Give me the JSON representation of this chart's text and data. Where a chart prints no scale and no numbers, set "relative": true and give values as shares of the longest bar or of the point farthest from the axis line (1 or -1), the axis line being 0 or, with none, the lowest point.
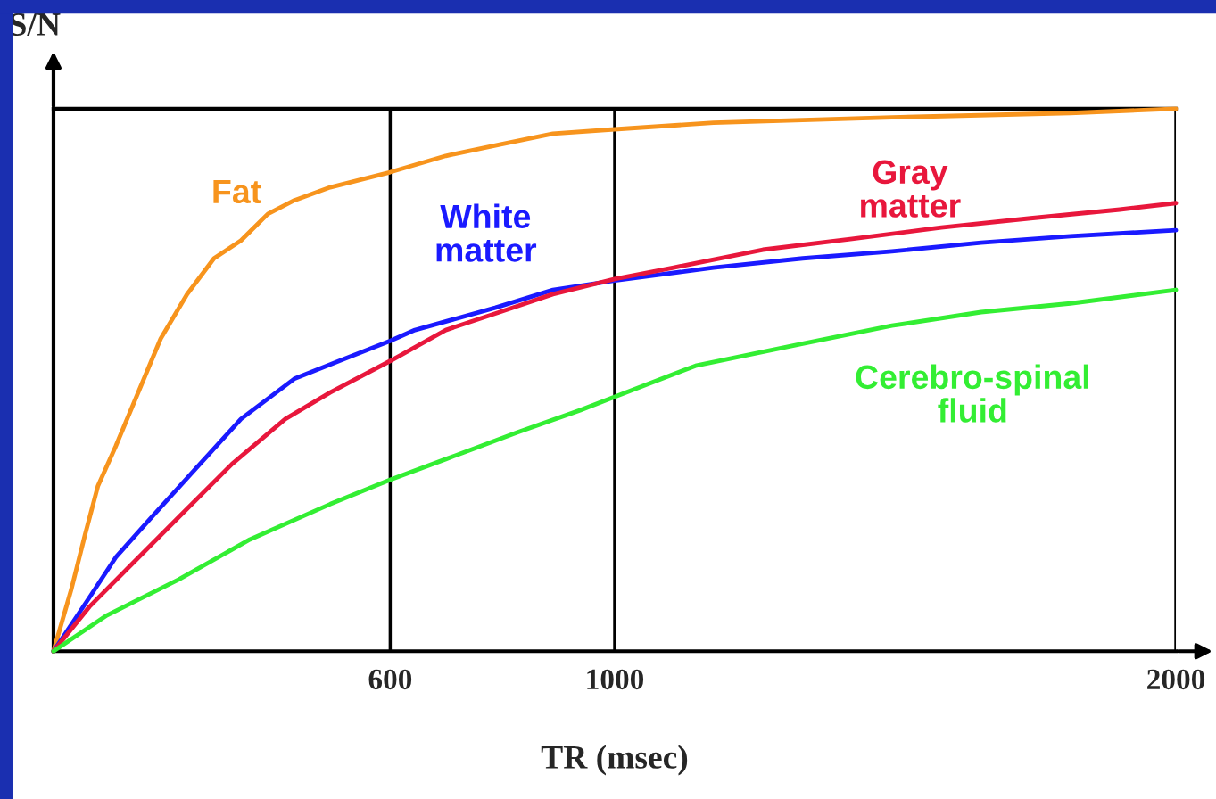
{
  "chart_data": {
    "type": "line",
    "relative": true,
    "xlabel": "TR (msec)",
    "ylabel": "S/N",
    "xlim": [
      0,
      2000
    ],
    "xticks": [
      600,
      1000,
      2000
    ],
    "grid": "x",
    "tick_labels": "x",
    "marker": "none",
    "line_style": "solid",
    "series": [
      {
        "name": "Fat",
        "color": "#f7941d",
        "x": [
          0,
          32,
          56,
          79,
          111,
          151,
          191,
          238,
          286,
          334,
          382,
          429,
          493,
          600,
          699,
          795,
          890,
          1000,
          1176,
          1494,
          1812,
          2000
        ],
        "values": [
          0,
          0.115,
          0.214,
          0.304,
          0.378,
          0.477,
          0.576,
          0.658,
          0.724,
          0.757,
          0.806,
          0.831,
          0.855,
          0.883,
          0.913,
          0.934,
          0.954,
          0.962,
          0.974,
          0.984,
          0.992,
          1
        ]
      },
      {
        "name": "White matter",
        "color": "#1a1aff",
        "x": [
          0,
          64,
          111,
          175,
          254,
          334,
          429,
          509,
          600,
          644,
          787,
          890,
          1000,
          1176,
          1335,
          1494,
          1653,
          1812,
          2000
        ],
        "values": [
          0,
          0.099,
          0.173,
          0.247,
          0.337,
          0.428,
          0.502,
          0.535,
          0.572,
          0.592,
          0.633,
          0.666,
          0.683,
          0.707,
          0.724,
          0.737,
          0.753,
          0.765,
          0.776
        ]
      },
      {
        "name": "Gray matter",
        "color": "#e8173c",
        "x": [
          0,
          64,
          143,
          223,
          318,
          413,
          493,
          600,
          699,
          795,
          890,
          1000,
          1105,
          1264,
          1423,
          1582,
          1741,
          1900,
          2000
        ],
        "values": [
          0,
          0.082,
          0.164,
          0.247,
          0.345,
          0.428,
          0.477,
          0.535,
          0.592,
          0.625,
          0.658,
          0.686,
          0.707,
          0.74,
          0.76,
          0.781,
          0.798,
          0.814,
          0.826
        ]
      },
      {
        "name": "Cerebro-spinal fluid",
        "color": "#33ee33",
        "x": [
          0,
          95,
          223,
          350,
          493,
          600,
          699,
          826,
          938,
          1000,
          1144,
          1335,
          1494,
          1653,
          1812,
          2000
        ],
        "values": [
          0,
          0.066,
          0.132,
          0.206,
          0.271,
          0.316,
          0.354,
          0.403,
          0.444,
          0.469,
          0.526,
          0.567,
          0.6,
          0.625,
          0.641,
          0.666
        ]
      }
    ]
  }
}
